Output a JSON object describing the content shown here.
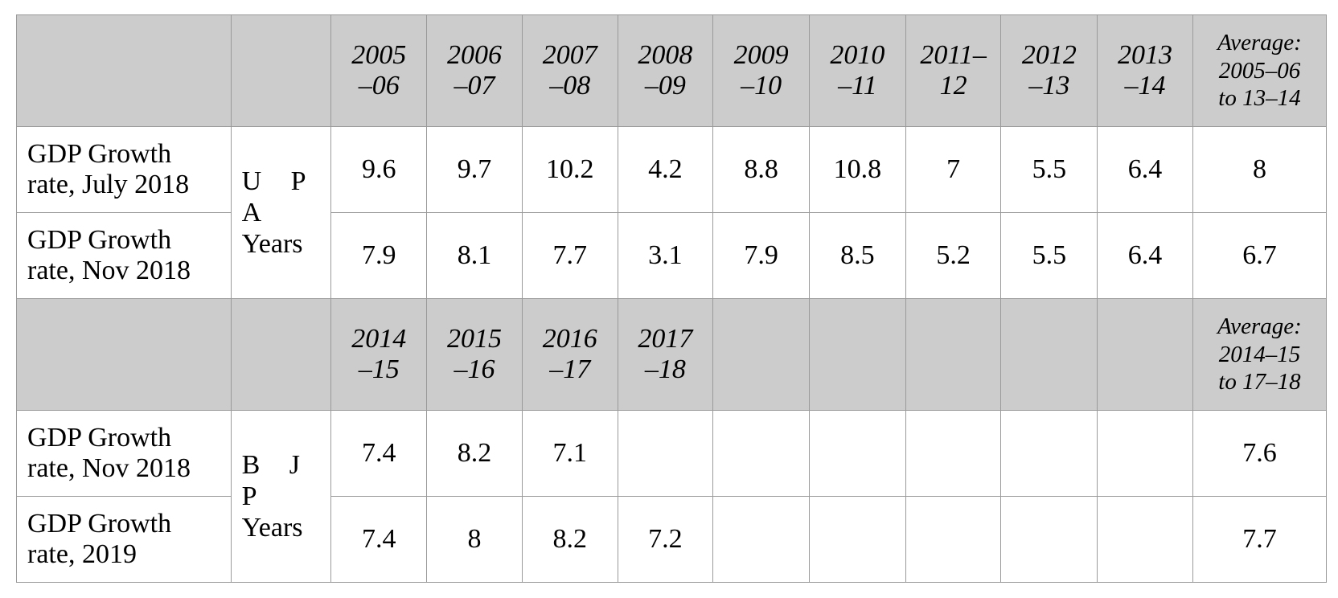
{
  "table": {
    "section_upa": {
      "headers": [
        [
          "2005",
          "–06"
        ],
        [
          "2006",
          "–07"
        ],
        [
          "2007",
          "–08"
        ],
        [
          "2008",
          "–09"
        ],
        [
          "2009",
          "–10"
        ],
        [
          "2010",
          "–11"
        ],
        [
          "2011–",
          "12"
        ],
        [
          "2012",
          "–13"
        ],
        [
          "2013",
          "–14"
        ]
      ],
      "average_header": [
        "Average:",
        "2005–06",
        "to 13–14"
      ],
      "era_abbr": "U P A",
      "era_word": "Years",
      "rows": [
        {
          "label": [
            "GDP Growth",
            "rate, July 2018"
          ],
          "values": [
            "9.6",
            "9.7",
            "10.2",
            "4.2",
            "8.8",
            "10.8",
            "7",
            "5.5",
            "6.4"
          ],
          "average": "8"
        },
        {
          "label": [
            "GDP Growth",
            "rate, Nov 2018"
          ],
          "values": [
            "7.9",
            "8.1",
            "7.7",
            "3.1",
            "7.9",
            "8.5",
            "5.2",
            "5.5",
            "6.4"
          ],
          "average": "6.7"
        }
      ]
    },
    "section_bjp": {
      "headers": [
        [
          "2014",
          "–15"
        ],
        [
          "2015",
          "–16"
        ],
        [
          "2016",
          "–17"
        ],
        [
          "2017",
          "–18"
        ],
        [
          "",
          ""
        ],
        [
          "",
          ""
        ],
        [
          "",
          ""
        ],
        [
          "",
          ""
        ],
        [
          "",
          ""
        ]
      ],
      "average_header": [
        "Average:",
        "2014–15",
        "to 17–18"
      ],
      "era_abbr": "B J P",
      "era_word": "Years",
      "rows": [
        {
          "label": [
            "GDP Growth",
            "rate, Nov 2018"
          ],
          "values": [
            "7.4",
            "8.2",
            "7.1",
            "",
            "",
            "",
            "",
            "",
            ""
          ],
          "average": "7.6"
        },
        {
          "label": [
            "GDP Growth",
            "rate, 2019"
          ],
          "values": [
            "7.4",
            "8",
            "8.2",
            "7.2",
            "",
            "",
            "",
            "",
            ""
          ],
          "average": "7.7"
        }
      ]
    }
  }
}
